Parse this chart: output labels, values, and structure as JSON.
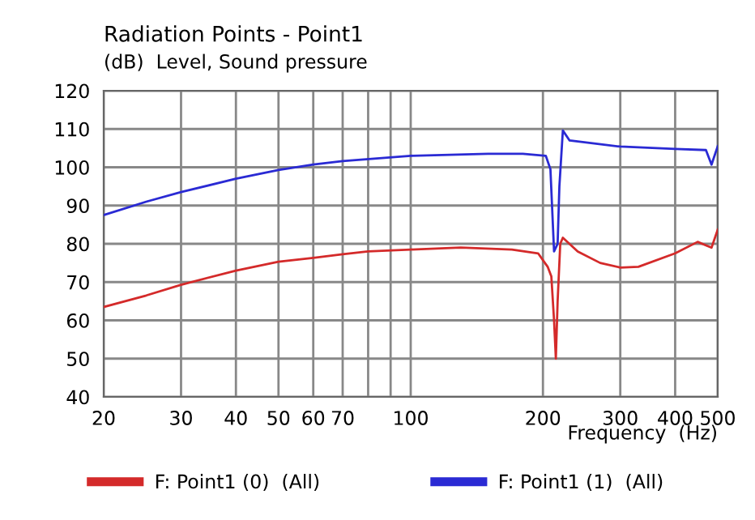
{
  "chart_data": {
    "type": "line",
    "title": "Radiation Points - Point1",
    "subtitle": "(dB)  Level, Sound pressure",
    "xlabel": "Frequency  (Hz)",
    "log": "x",
    "xlim": [
      20,
      500
    ],
    "ylim": [
      40,
      120
    ],
    "xticks": [
      20,
      30,
      40,
      50,
      60,
      70,
      {
        "value": 80,
        "label": null
      },
      {
        "value": 90,
        "label": null
      },
      100,
      200,
      300,
      400,
      500
    ],
    "yticks": [
      40,
      50,
      60,
      70,
      80,
      90,
      100,
      110,
      120
    ],
    "grid": true,
    "legend": "bottom",
    "series": [
      {
        "name": "F: Point1 (0)  (All)",
        "color": "#d42a2a",
        "x": [
          20,
          25,
          30,
          40,
          50,
          60,
          70,
          80,
          100,
          130,
          170,
          195,
          205,
          209,
          212,
          214,
          216,
          219,
          222,
          240,
          270,
          300,
          330,
          400,
          450,
          484,
          500
        ],
        "values": [
          63.5,
          66.5,
          69.3,
          73,
          75.3,
          76.3,
          77.3,
          78,
          78.5,
          79,
          78.5,
          77.5,
          74,
          71.5,
          60,
          50,
          65,
          80,
          81.6,
          78,
          75,
          73.8,
          74,
          77.5,
          80.5,
          79,
          83.7
        ]
      },
      {
        "name": "F: Point1 (1)  (All)",
        "color": "#2a2ad4",
        "x": [
          20,
          25,
          30,
          40,
          50,
          60,
          70,
          100,
          150,
          180,
          203,
          208,
          212,
          216,
          218,
          222,
          230,
          300,
          400,
          470,
          484,
          500
        ],
        "values": [
          87.5,
          91,
          93.5,
          97,
          99.3,
          100.7,
          101.6,
          103,
          103.5,
          103.5,
          103,
          99.5,
          78,
          80,
          95,
          109.6,
          107,
          105.4,
          104.8,
          104.5,
          100.7,
          105.5
        ]
      }
    ]
  }
}
